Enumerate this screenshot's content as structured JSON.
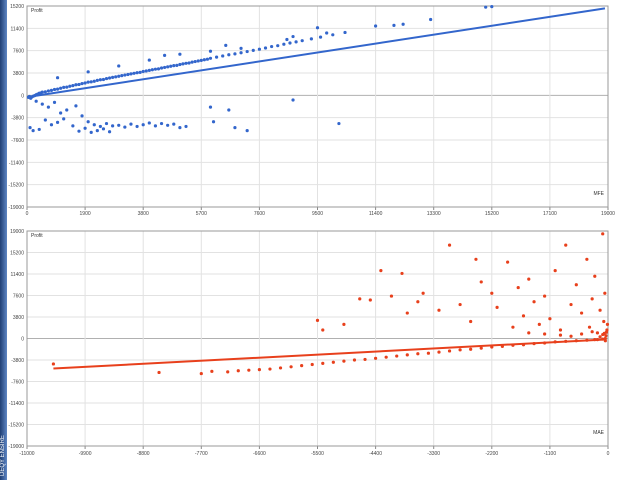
{
  "page": {
    "background": "#ffffff",
    "edge_color": "#2f5597",
    "edge_text": "DEQY ENSIRE"
  },
  "chart_data": [
    {
      "type": "scatter",
      "ylabel": "Profit",
      "xlabel": "MFE",
      "color": "#3366cc",
      "xlim": [
        0,
        19000
      ],
      "ylim": [
        -19000,
        15200
      ],
      "x_ticks": [
        0,
        1900,
        3800,
        5700,
        7600,
        9500,
        11400,
        13300,
        15200,
        17100,
        19000
      ],
      "y_ticks": [
        15200,
        11400,
        7600,
        3800,
        0,
        -3800,
        -7600,
        -11400,
        -15200,
        -19000
      ],
      "grid": true,
      "trend": {
        "x": [
          0,
          18900
        ],
        "y": [
          -300,
          14800
        ]
      },
      "points": [
        [
          50,
          -350
        ],
        [
          80,
          -200
        ],
        [
          120,
          -500
        ],
        [
          150,
          -300
        ],
        [
          200,
          -150
        ],
        [
          250,
          -50
        ],
        [
          300,
          100
        ],
        [
          350,
          200
        ],
        [
          400,
          350
        ],
        [
          450,
          400
        ],
        [
          500,
          550
        ],
        [
          600,
          600
        ],
        [
          700,
          750
        ],
        [
          800,
          850
        ],
        [
          900,
          1000
        ],
        [
          1000,
          1050
        ],
        [
          1100,
          1200
        ],
        [
          1200,
          1350
        ],
        [
          1300,
          1400
        ],
        [
          1400,
          1550
        ],
        [
          1500,
          1650
        ],
        [
          1600,
          1800
        ],
        [
          1700,
          1850
        ],
        [
          1800,
          2000
        ],
        [
          1900,
          2100
        ],
        [
          2000,
          2250
        ],
        [
          2100,
          2300
        ],
        [
          2200,
          2400
        ],
        [
          2300,
          2550
        ],
        [
          2400,
          2650
        ],
        [
          2500,
          2700
        ],
        [
          2600,
          2850
        ],
        [
          2700,
          2950
        ],
        [
          2800,
          3050
        ],
        [
          2900,
          3150
        ],
        [
          3000,
          3250
        ],
        [
          3100,
          3350
        ],
        [
          3200,
          3450
        ],
        [
          3300,
          3550
        ],
        [
          3400,
          3650
        ],
        [
          3500,
          3750
        ],
        [
          3600,
          3850
        ],
        [
          3700,
          3900
        ],
        [
          3800,
          4050
        ],
        [
          3900,
          4150
        ],
        [
          4000,
          4250
        ],
        [
          4100,
          4350
        ],
        [
          4200,
          4450
        ],
        [
          4300,
          4500
        ],
        [
          4400,
          4650
        ],
        [
          4500,
          4750
        ],
        [
          4600,
          4850
        ],
        [
          4700,
          4950
        ],
        [
          4800,
          5050
        ],
        [
          4900,
          5100
        ],
        [
          5000,
          5250
        ],
        [
          5100,
          5350
        ],
        [
          5200,
          5450
        ],
        [
          5300,
          5500
        ],
        [
          5400,
          5650
        ],
        [
          5500,
          5750
        ],
        [
          5600,
          5850
        ],
        [
          5700,
          5950
        ],
        [
          5800,
          6050
        ],
        [
          5900,
          6150
        ],
        [
          6000,
          6300
        ],
        [
          6200,
          6500
        ],
        [
          6400,
          6700
        ],
        [
          6600,
          6900
        ],
        [
          6800,
          7050
        ],
        [
          7000,
          7250
        ],
        [
          7200,
          7450
        ],
        [
          7400,
          7650
        ],
        [
          7600,
          7850
        ],
        [
          7800,
          8050
        ],
        [
          8000,
          8300
        ],
        [
          8200,
          8450
        ],
        [
          8400,
          8700
        ],
        [
          8600,
          8900
        ],
        [
          8800,
          9100
        ],
        [
          9000,
          9300
        ],
        [
          9300,
          9600
        ],
        [
          9600,
          9900
        ],
        [
          10000,
          10300
        ],
        [
          10400,
          10700
        ],
        [
          11400,
          11800
        ],
        [
          12000,
          11900
        ],
        [
          12300,
          12100
        ],
        [
          13200,
          12900
        ],
        [
          15000,
          15000
        ],
        [
          15200,
          15100
        ],
        [
          1000,
          3000
        ],
        [
          2000,
          4000
        ],
        [
          3000,
          5000
        ],
        [
          4000,
          6000
        ],
        [
          5000,
          7000
        ],
        [
          6000,
          7500
        ],
        [
          7000,
          8000
        ],
        [
          8500,
          9500
        ],
        [
          9800,
          10600
        ],
        [
          9500,
          11500
        ],
        [
          8700,
          10000
        ],
        [
          6500,
          8500
        ],
        [
          4500,
          6800
        ],
        [
          300,
          -1000
        ],
        [
          500,
          -1500
        ],
        [
          700,
          -2000
        ],
        [
          900,
          -1200
        ],
        [
          1100,
          -3000
        ],
        [
          1300,
          -2500
        ],
        [
          1600,
          -1800
        ],
        [
          1800,
          -3500
        ],
        [
          2000,
          -4500
        ],
        [
          2200,
          -5000
        ],
        [
          2400,
          -5300
        ],
        [
          2600,
          -4800
        ],
        [
          2800,
          -5200
        ],
        [
          3000,
          -5100
        ],
        [
          3200,
          -5400
        ],
        [
          3400,
          -4900
        ],
        [
          3600,
          -5300
        ],
        [
          3800,
          -5000
        ],
        [
          4000,
          -4700
        ],
        [
          4200,
          -5200
        ],
        [
          4400,
          -4800
        ],
        [
          4600,
          -5100
        ],
        [
          4800,
          -4900
        ],
        [
          5000,
          -5500
        ],
        [
          5200,
          -5300
        ],
        [
          6000,
          -2000
        ],
        [
          6100,
          -4500
        ],
        [
          6600,
          -2500
        ],
        [
          6800,
          -5500
        ],
        [
          7200,
          -6000
        ],
        [
          8700,
          -800
        ],
        [
          10200,
          -4800
        ],
        [
          100,
          -5500
        ],
        [
          200,
          -6000
        ],
        [
          400,
          -5800
        ],
        [
          600,
          -4200
        ],
        [
          800,
          -5000
        ],
        [
          1000,
          -4600
        ],
        [
          1200,
          -4000
        ],
        [
          1500,
          -5200
        ],
        [
          1700,
          -6100
        ],
        [
          1900,
          -5600
        ],
        [
          2100,
          -6300
        ],
        [
          2300,
          -6000
        ],
        [
          2500,
          -5700
        ],
        [
          2700,
          -6200
        ]
      ]
    },
    {
      "type": "scatter",
      "ylabel": "Profit",
      "xlabel": "MAE",
      "color": "#e8401c",
      "xlim": [
        -11000,
        0
      ],
      "ylim": [
        -19000,
        19000
      ],
      "x_ticks": [
        -11000,
        -9900,
        -8800,
        -7700,
        -6600,
        -5500,
        -4400,
        -3300,
        -2200,
        -1100,
        0
      ],
      "y_ticks": [
        19000,
        15200,
        11400,
        7600,
        3800,
        0,
        -3800,
        -7600,
        -11400,
        -15200,
        -19000
      ],
      "grid": true,
      "trend": {
        "x": [
          -10500,
          -100
        ],
        "y": [
          -5300,
          -200
        ]
      },
      "points": [
        [
          -10500,
          -4500
        ],
        [
          -8500,
          -6000
        ],
        [
          -7700,
          -6200
        ],
        [
          -7500,
          -5800
        ],
        [
          -7200,
          -5900
        ],
        [
          -7000,
          -5700
        ],
        [
          -6800,
          -5600
        ],
        [
          -6600,
          -5500
        ],
        [
          -6400,
          -5400
        ],
        [
          -6200,
          -5200
        ],
        [
          -6000,
          -5000
        ],
        [
          -5800,
          -4800
        ],
        [
          -5600,
          -4600
        ],
        [
          -5400,
          -4400
        ],
        [
          -5200,
          -4200
        ],
        [
          -5000,
          -4000
        ],
        [
          -4800,
          -3800
        ],
        [
          -4600,
          -3700
        ],
        [
          -4400,
          -3500
        ],
        [
          -4200,
          -3300
        ],
        [
          -4000,
          -3100
        ],
        [
          -3800,
          -2900
        ],
        [
          -3600,
          -2700
        ],
        [
          -3400,
          -2600
        ],
        [
          -3200,
          -2400
        ],
        [
          -3000,
          -2200
        ],
        [
          -2800,
          -2000
        ],
        [
          -2600,
          -1900
        ],
        [
          -2400,
          -1700
        ],
        [
          -2200,
          -1500
        ],
        [
          -2000,
          -1400
        ],
        [
          -1800,
          -1200
        ],
        [
          -1600,
          -1100
        ],
        [
          -1400,
          -900
        ],
        [
          -1200,
          -800
        ],
        [
          -1000,
          -600
        ],
        [
          -800,
          -500
        ],
        [
          -600,
          -400
        ],
        [
          -400,
          -300
        ],
        [
          -200,
          -200
        ],
        [
          -100,
          -100
        ],
        [
          -50,
          0
        ],
        [
          -5500,
          3200
        ],
        [
          -5400,
          1500
        ],
        [
          -5000,
          2500
        ],
        [
          -4700,
          7000
        ],
        [
          -4500,
          6800
        ],
        [
          -4300,
          12000
        ],
        [
          -4100,
          7500
        ],
        [
          -3900,
          11500
        ],
        [
          -3800,
          4500
        ],
        [
          -3600,
          6500
        ],
        [
          -3500,
          8000
        ],
        [
          -3200,
          5000
        ],
        [
          -3000,
          16500
        ],
        [
          -2800,
          6000
        ],
        [
          -2600,
          3000
        ],
        [
          -2500,
          14000
        ],
        [
          -2400,
          10000
        ],
        [
          -2200,
          8000
        ],
        [
          -2100,
          5500
        ],
        [
          -1900,
          13500
        ],
        [
          -1800,
          2000
        ],
        [
          -1700,
          9000
        ],
        [
          -1600,
          4000
        ],
        [
          -1500,
          10500
        ],
        [
          -1400,
          6500
        ],
        [
          -1300,
          2500
        ],
        [
          -1200,
          7500
        ],
        [
          -1100,
          3500
        ],
        [
          -1000,
          12000
        ],
        [
          -900,
          1500
        ],
        [
          -800,
          16500
        ],
        [
          -700,
          6000
        ],
        [
          -600,
          9500
        ],
        [
          -500,
          4500
        ],
        [
          -400,
          14000
        ],
        [
          -350,
          2000
        ],
        [
          -300,
          7000
        ],
        [
          -250,
          11000
        ],
        [
          -200,
          1000
        ],
        [
          -150,
          5000
        ],
        [
          -100,
          18500
        ],
        [
          -80,
          3000
        ],
        [
          -60,
          8000
        ],
        [
          -40,
          500
        ],
        [
          -20,
          1500
        ],
        [
          -10,
          2500
        ],
        [
          -1500,
          1000
        ],
        [
          -1200,
          800
        ],
        [
          -900,
          600
        ],
        [
          -700,
          400
        ],
        [
          -500,
          800
        ],
        [
          -300,
          1200
        ],
        [
          -250,
          -200
        ],
        [
          -150,
          300
        ],
        [
          -100,
          700
        ],
        [
          -70,
          900
        ],
        [
          -50,
          -400
        ],
        [
          -30,
          1100
        ]
      ]
    }
  ]
}
